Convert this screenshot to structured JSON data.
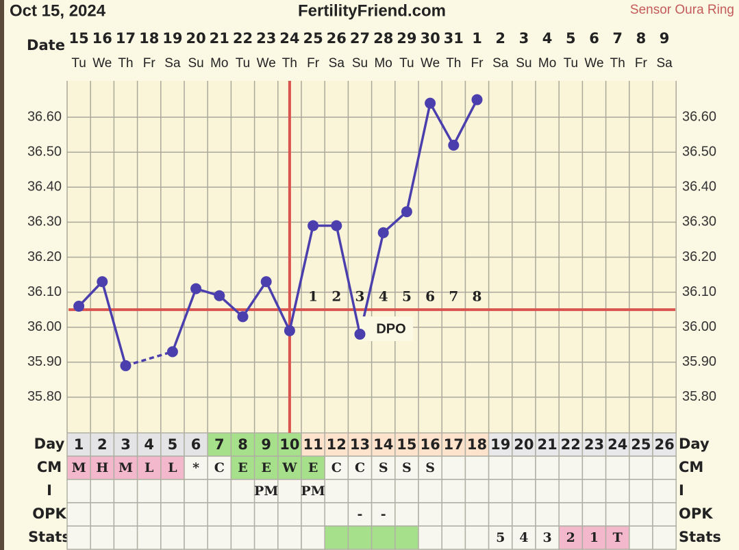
{
  "chart_data": {
    "type": "line",
    "title": "FertilityFriend.com",
    "date": "Oct 15, 2024",
    "subtitle": "Sensor Oura Ring",
    "date_label": "Date",
    "categories": [
      "15",
      "16",
      "17",
      "18",
      "19",
      "20",
      "21",
      "22",
      "23",
      "24",
      "25",
      "26",
      "27",
      "28",
      "29",
      "30",
      "31",
      "1",
      "2",
      "3",
      "4",
      "5",
      "6",
      "7",
      "8",
      "9"
    ],
    "weekdays": [
      "Tu",
      "We",
      "Th",
      "Fr",
      "Sa",
      "Su",
      "Mo",
      "Tu",
      "We",
      "Th",
      "Fr",
      "Sa",
      "Su",
      "Mo",
      "Tu",
      "We",
      "Th",
      "Fr",
      "Sa",
      "Su",
      "Mo",
      "Tu",
      "We",
      "Th",
      "Fr",
      "Sa"
    ],
    "values": [
      36.06,
      36.13,
      35.89,
      null,
      35.93,
      36.11,
      36.09,
      36.03,
      36.13,
      35.99,
      36.29,
      36.29,
      35.98,
      36.27,
      36.33,
      36.64,
      36.52,
      36.65,
      null,
      null,
      null,
      null,
      null,
      null,
      null,
      null
    ],
    "color": "#4b3fae",
    "coverline": 36.05,
    "ovulation_day": 10,
    "dpo_labels": [
      null,
      null,
      null,
      null,
      null,
      null,
      null,
      null,
      null,
      null,
      1,
      2,
      3,
      4,
      5,
      6,
      7,
      8,
      null,
      null,
      null,
      null,
      null,
      null,
      null,
      null
    ],
    "dpo_text": "DPO",
    "ylim": [
      35.7,
      36.7
    ],
    "yticks": [
      {
        "value": 35.8,
        "label": "35.80"
      },
      {
        "value": 35.9,
        "label": "35.90"
      },
      {
        "value": 36.0,
        "label": "36.00"
      },
      {
        "value": 36.1,
        "label": "36.10"
      },
      {
        "value": 36.2,
        "label": "36.20"
      },
      {
        "value": 36.3,
        "label": "36.30"
      },
      {
        "value": 36.4,
        "label": "36.40"
      },
      {
        "value": 36.5,
        "label": "36.50"
      },
      {
        "value": 36.6,
        "label": "36.60"
      }
    ],
    "grid": true,
    "table": {
      "rows": [
        {
          "label": "Day",
          "cells": [
            1,
            2,
            3,
            4,
            5,
            6,
            7,
            8,
            9,
            10,
            11,
            12,
            13,
            14,
            15,
            16,
            17,
            18,
            19,
            20,
            21,
            22,
            23,
            24,
            25,
            26
          ],
          "colors": [
            "#e4e4e6",
            "#e4e4e6",
            "#e4e4e6",
            "#e4e4e6",
            "#e4e4e6",
            "#e4e4e6",
            "#a6e08a",
            "#a6e08a",
            "#a6e08a",
            "#a6e08a",
            "#fde3cc",
            "#fde3cc",
            "#fde3cc",
            "#fde3cc",
            "#fde3cc",
            "#fde3cc",
            "#fde3cc",
            "#fde3cc",
            "#e8e8ea",
            "#e8e8ea",
            "#e8e8ea",
            "#e8e8ea",
            "#e8e8ea",
            "#e8e8ea",
            "#e8e8ea",
            "#e8e8ea"
          ]
        },
        {
          "label": "CM",
          "cells": [
            "M",
            "H",
            "M",
            "L",
            "L",
            "*",
            "C",
            "E",
            "E",
            "W",
            "E",
            "C",
            "C",
            "S",
            "S",
            "S",
            null,
            null,
            null,
            null,
            null,
            null,
            null,
            null,
            null,
            null
          ],
          "colors": [
            "#f3b8cb",
            "#f3b8cb",
            "#f3b8cb",
            "#f3b8cb",
            "#f3b8cb",
            "#f8f7ef",
            "#f8f7ef",
            "#a6e08a",
            "#a6e08a",
            "#a6e08a",
            "#a6e08a",
            "#f8f7ef",
            "#f8f7ef",
            "#f8f7ef",
            "#f8f7ef",
            "#f8f7ef",
            "#f8f7ef",
            "#f8f7ef",
            "#f8f7ef",
            "#f8f7ef",
            "#f8f7ef",
            "#f8f7ef",
            "#f8f7ef",
            "#f8f7ef",
            "#f8f7ef",
            "#f8f7ef"
          ]
        },
        {
          "label": "I",
          "cells": [
            null,
            null,
            null,
            null,
            null,
            null,
            null,
            null,
            "PM",
            null,
            "PM",
            null,
            null,
            null,
            null,
            null,
            null,
            null,
            null,
            null,
            null,
            null,
            null,
            null,
            null,
            null
          ]
        },
        {
          "label": "OPK",
          "cells": [
            null,
            null,
            null,
            null,
            null,
            null,
            null,
            null,
            null,
            null,
            null,
            null,
            "-",
            "-",
            null,
            null,
            null,
            null,
            null,
            null,
            null,
            null,
            null,
            null,
            null,
            null
          ]
        },
        {
          "label": "Stats",
          "cells": [
            null,
            null,
            null,
            null,
            null,
            null,
            null,
            null,
            null,
            null,
            null,
            null,
            null,
            null,
            null,
            null,
            null,
            null,
            5,
            4,
            3,
            2,
            1,
            "T",
            null,
            null
          ],
          "colors": [
            "#f8f7ef",
            "#f8f7ef",
            "#f8f7ef",
            "#f8f7ef",
            "#f8f7ef",
            "#f8f7ef",
            "#f8f7ef",
            "#f8f7ef",
            "#f8f7ef",
            "#f8f7ef",
            "#f8f7ef",
            "#a6e08a",
            "#a6e08a",
            "#a6e08a",
            "#a6e08a",
            "#f8f7ef",
            "#f8f7ef",
            "#f8f7ef",
            "#f8f7ef",
            "#f8f7ef",
            "#f8f7ef",
            "#f3b8cb",
            "#f3b8cb",
            "#f3b8cb",
            "#f8f7ef",
            "#f8f7ef"
          ]
        }
      ]
    }
  }
}
